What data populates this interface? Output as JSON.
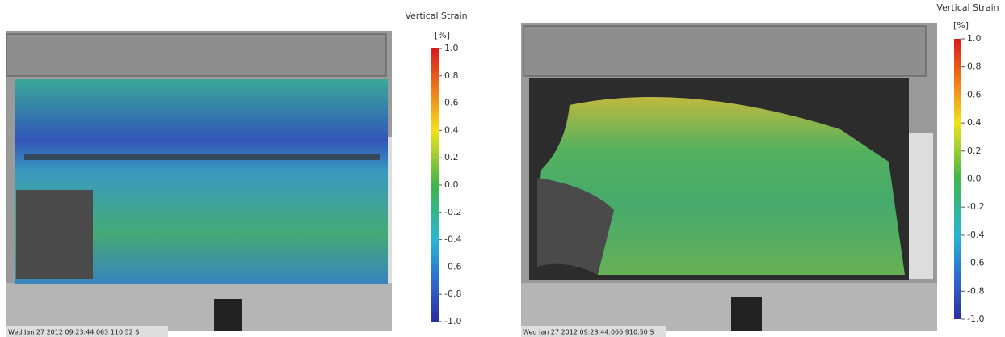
{
  "panels": [
    {
      "title": "Vertical Strain",
      "unit": "[%]",
      "ticks": [
        {
          "value": 1,
          "label": "1.0"
        },
        {
          "value": 0.8,
          "label": "0.8"
        },
        {
          "value": 0.6,
          "label": "0.6"
        },
        {
          "value": 0.4,
          "label": "0.4"
        },
        {
          "value": 0.2,
          "label": "0.2"
        },
        {
          "value": 0,
          "label": "0.0"
        },
        {
          "value": -0.2,
          "label": "-0.2"
        },
        {
          "value": -0.4,
          "label": "-0.4"
        },
        {
          "value": -0.6,
          "label": "-0.6"
        },
        {
          "value": -0.8,
          "label": "-0.8"
        },
        {
          "value": -1,
          "label": "-1.0"
        }
      ],
      "timestamp": "Wed Jan 27 2012 09:23:44.063 110.52 S"
    },
    {
      "title": "Vertical Strain",
      "unit": "[%]",
      "ticks": [
        {
          "value": 1,
          "label": "1.0"
        },
        {
          "value": 0.8,
          "label": "0.8"
        },
        {
          "value": 0.6,
          "label": "0.6"
        },
        {
          "value": 0.4,
          "label": "0.4"
        },
        {
          "value": 0.2,
          "label": "0.2"
        },
        {
          "value": 0,
          "label": "0.0"
        },
        {
          "value": -0.2,
          "label": "-0.2"
        },
        {
          "value": -0.4,
          "label": "-0.4"
        },
        {
          "value": -0.6,
          "label": "-0.6"
        },
        {
          "value": -0.8,
          "label": "-0.8"
        },
        {
          "value": -1,
          "label": "-1.0"
        }
      ],
      "timestamp": "Wed Jan 27 2012 09:23:44.066 910.50 S"
    }
  ]
}
